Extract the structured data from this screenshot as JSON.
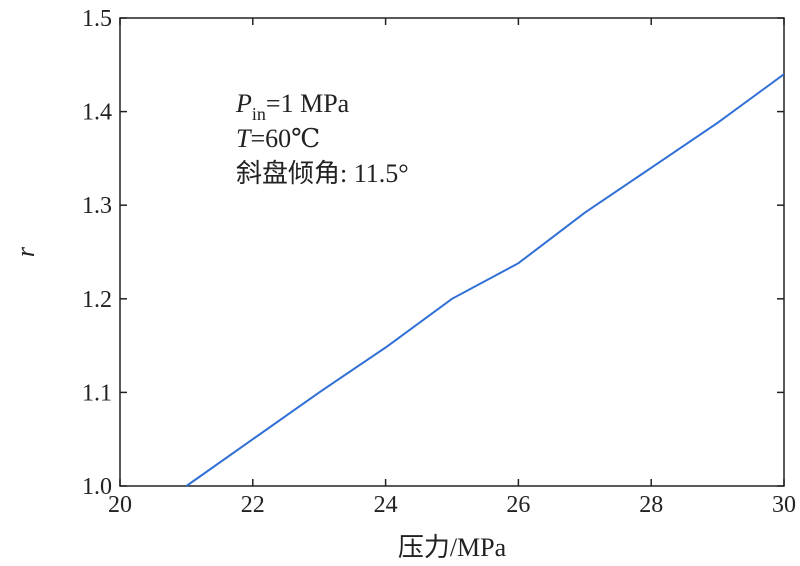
{
  "chart_data": {
    "type": "line",
    "title": "",
    "xlabel": "压力/MPa",
    "ylabel": "r",
    "xlim": [
      20,
      30
    ],
    "ylim": [
      1.0,
      1.5
    ],
    "x_ticks": [
      "20",
      "22",
      "24",
      "26",
      "28",
      "30"
    ],
    "y_ticks": [
      "1.0",
      "1.1",
      "1.2",
      "1.3",
      "1.4",
      "1.5"
    ],
    "grid": false,
    "series": [
      {
        "color": "#2f6fd6",
        "x": [
          21,
          22,
          23,
          24,
          25,
          26,
          27,
          28,
          29,
          30
        ],
        "y": [
          1.0,
          1.05,
          1.1,
          1.148,
          1.2,
          1.238,
          1.292,
          1.34,
          1.388,
          1.44
        ]
      }
    ],
    "annotations": {
      "p_symbol": "P",
      "p_subscript": "in",
      "p_value": "=1 MPa",
      "t_symbol": "T",
      "t_value": "=60℃",
      "swash": "斜盘倾角: 11.5°"
    }
  }
}
